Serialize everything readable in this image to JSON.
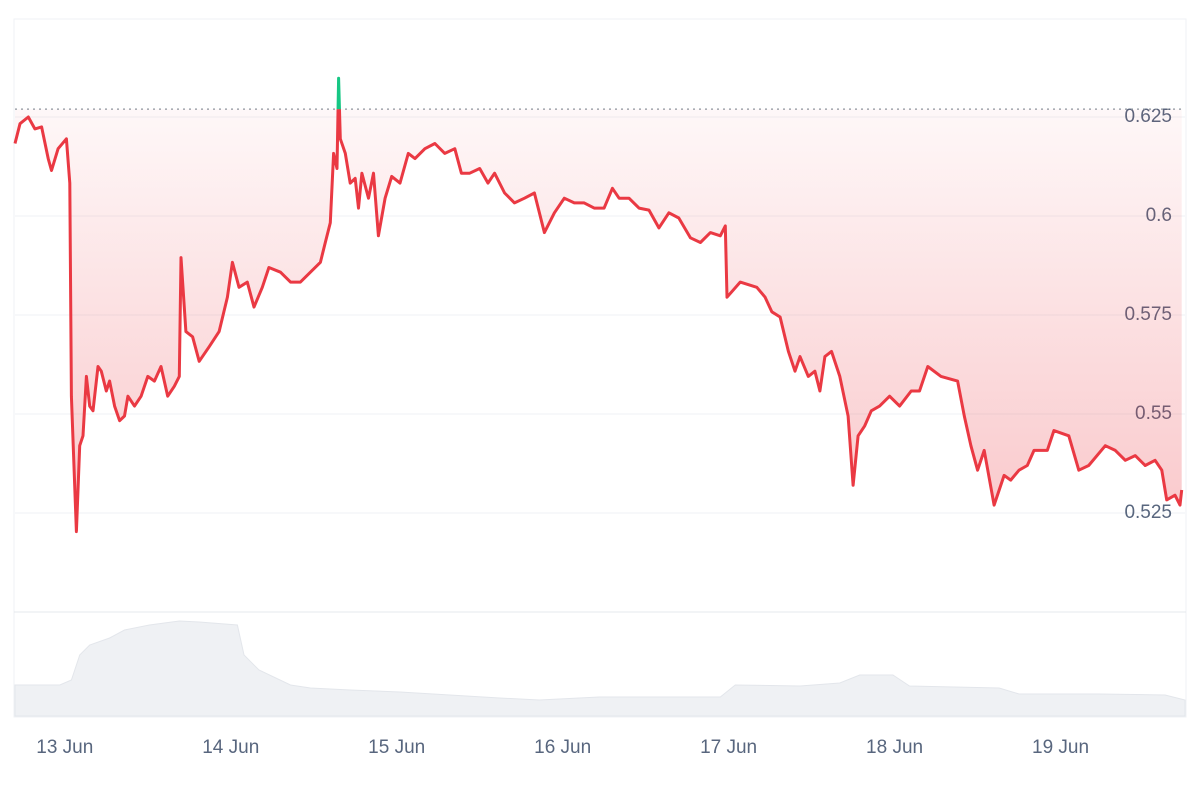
{
  "chart_data": {
    "type": "line",
    "color": "#ea3943",
    "up_color": "#16c784",
    "baseline": 0.627,
    "ylim": [
      0.5,
      0.6495
    ],
    "yticks": [
      0.525,
      0.55,
      0.575,
      0.6,
      0.625
    ],
    "xlim": [
      -0.3,
      6.75
    ],
    "xticks": [
      {
        "value": 0,
        "label": "13 Jun"
      },
      {
        "value": 1,
        "label": "14 Jun"
      },
      {
        "value": 2,
        "label": "15 Jun"
      },
      {
        "value": 3,
        "label": "16 Jun"
      },
      {
        "value": 4,
        "label": "17 Jun"
      },
      {
        "value": 5,
        "label": "18 Jun"
      },
      {
        "value": 6,
        "label": "19 Jun"
      }
    ],
    "grid": true,
    "x": [
      -0.3,
      -0.27,
      -0.22,
      -0.18,
      -0.14,
      -0.1,
      -0.08,
      -0.04,
      0.01,
      0.03,
      0.04,
      0.07,
      0.09,
      0.11,
      0.13,
      0.15,
      0.17,
      0.2,
      0.22,
      0.25,
      0.27,
      0.3,
      0.33,
      0.36,
      0.38,
      0.42,
      0.46,
      0.5,
      0.54,
      0.58,
      0.62,
      0.66,
      0.69,
      0.7,
      0.73,
      0.77,
      0.81,
      0.87,
      0.93,
      0.98,
      1.01,
      1.05,
      1.1,
      1.14,
      1.19,
      1.23,
      1.3,
      1.36,
      1.42,
      1.48,
      1.54,
      1.57,
      1.6,
      1.62,
      1.64,
      1.65,
      1.66,
      1.69,
      1.72,
      1.75,
      1.77,
      1.79,
      1.83,
      1.86,
      1.89,
      1.93,
      1.97,
      2.02,
      2.07,
      2.11,
      2.17,
      2.23,
      2.29,
      2.35,
      2.39,
      2.44,
      2.5,
      2.55,
      2.59,
      2.65,
      2.71,
      2.77,
      2.83,
      2.89,
      2.95,
      3.01,
      3.07,
      3.13,
      3.19,
      3.25,
      3.3,
      3.34,
      3.4,
      3.46,
      3.52,
      3.58,
      3.64,
      3.7,
      3.77,
      3.83,
      3.89,
      3.95,
      3.98,
      3.99,
      4.07,
      4.17,
      4.22,
      4.26,
      4.31,
      4.36,
      4.4,
      4.43,
      4.48,
      4.52,
      4.55,
      4.58,
      4.62,
      4.67,
      4.72,
      4.75,
      4.78,
      4.82,
      4.86,
      4.91,
      4.97,
      5.03,
      5.1,
      5.15,
      5.2,
      5.28,
      5.38,
      5.42,
      5.46,
      5.5,
      5.54,
      5.6,
      5.66,
      5.7,
      5.75,
      5.8,
      5.84,
      5.92,
      5.96,
      6.05,
      6.11,
      6.17,
      6.27,
      6.33,
      6.39,
      6.45,
      6.51,
      6.57,
      6.61,
      6.64,
      6.69,
      6.72,
      6.73
    ],
    "values": [
      0.6183,
      0.6233,
      0.625,
      0.622,
      0.6225,
      0.6145,
      0.6115,
      0.617,
      0.6195,
      0.6083,
      0.5545,
      0.5203,
      0.542,
      0.5445,
      0.5595,
      0.552,
      0.5508,
      0.562,
      0.5608,
      0.5558,
      0.5583,
      0.552,
      0.5483,
      0.5495,
      0.5545,
      0.552,
      0.5545,
      0.5595,
      0.5583,
      0.562,
      0.5545,
      0.557,
      0.5595,
      0.5895,
      0.5708,
      0.5695,
      0.5633,
      0.567,
      0.5708,
      0.5795,
      0.5883,
      0.582,
      0.5833,
      0.577,
      0.582,
      0.587,
      0.5858,
      0.5833,
      0.5833,
      0.5858,
      0.5883,
      0.5933,
      0.5983,
      0.6158,
      0.612,
      0.6348,
      0.6195,
      0.6158,
      0.6083,
      0.6095,
      0.602,
      0.6108,
      0.6045,
      0.6108,
      0.595,
      0.6045,
      0.61,
      0.6083,
      0.6158,
      0.6145,
      0.617,
      0.6183,
      0.6158,
      0.617,
      0.6108,
      0.6108,
      0.612,
      0.6083,
      0.6108,
      0.6058,
      0.6033,
      0.6045,
      0.6058,
      0.5958,
      0.6008,
      0.6045,
      0.6033,
      0.6033,
      0.602,
      0.602,
      0.607,
      0.6045,
      0.6045,
      0.602,
      0.6015,
      0.597,
      0.6008,
      0.5995,
      0.5945,
      0.5933,
      0.5958,
      0.595,
      0.5975,
      0.5795,
      0.5833,
      0.582,
      0.5795,
      0.5758,
      0.5745,
      0.5658,
      0.5608,
      0.5645,
      0.5595,
      0.5608,
      0.5558,
      0.5645,
      0.5658,
      0.5595,
      0.5495,
      0.532,
      0.5445,
      0.547,
      0.5508,
      0.552,
      0.5545,
      0.552,
      0.5558,
      0.5558,
      0.562,
      0.5595,
      0.5583,
      0.5495,
      0.542,
      0.5358,
      0.5408,
      0.527,
      0.5345,
      0.5333,
      0.5358,
      0.537,
      0.5408,
      0.5408,
      0.5458,
      0.5445,
      0.5358,
      0.537,
      0.542,
      0.5408,
      0.5383,
      0.5395,
      0.537,
      0.5383,
      0.5358,
      0.5283,
      0.5295,
      0.527,
      0.5308
    ],
    "volume": {
      "color": "#eff1f4",
      "ylim": [
        0,
        104
      ],
      "x": [
        -0.3,
        -0.03,
        0.04,
        0.09,
        0.15,
        0.27,
        0.36,
        0.51,
        0.69,
        0.81,
        1.04,
        1.08,
        1.17,
        1.36,
        1.48,
        1.72,
        2.02,
        2.32,
        2.62,
        2.86,
        3.22,
        3.95,
        4.04,
        4.43,
        4.67,
        4.79,
        4.99,
        5.09,
        5.63,
        5.75,
        6.23,
        6.63,
        6.75
      ],
      "values": [
        31,
        31,
        36,
        61,
        71,
        78,
        86,
        91,
        95,
        94,
        91,
        61,
        46,
        31,
        28,
        26,
        24,
        21,
        18,
        16,
        19,
        19,
        31,
        30,
        33,
        41,
        41,
        30,
        28,
        22,
        22,
        21,
        16
      ]
    }
  }
}
